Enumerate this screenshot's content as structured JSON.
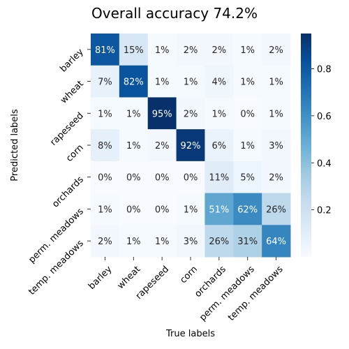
{
  "chart_data": {
    "type": "heatmap",
    "title": "Overall accuracy 74.2%",
    "xlabel": "True labels",
    "ylabel": "Predicted labels",
    "x_categories": [
      "barley",
      "wheat",
      "rapeseed",
      "corn",
      "orchards",
      "perm. meadows",
      "temp. meadows"
    ],
    "y_categories": [
      "barley",
      "wheat",
      "rapeseed",
      "corn",
      "orchards",
      "perm. meadows",
      "temp. meadows"
    ],
    "values": [
      [
        0.81,
        0.15,
        0.01,
        0.02,
        0.02,
        0.01,
        0.02
      ],
      [
        0.07,
        0.82,
        0.01,
        0.01,
        0.04,
        0.01,
        0.01
      ],
      [
        0.01,
        0.01,
        0.95,
        0.02,
        0.01,
        0.0,
        0.01
      ],
      [
        0.08,
        0.01,
        0.02,
        0.92,
        0.06,
        0.01,
        0.03
      ],
      [
        0.0,
        0.0,
        0.0,
        0.0,
        0.11,
        0.05,
        0.02
      ],
      [
        0.01,
        0.0,
        0.0,
        0.01,
        0.51,
        0.62,
        0.26
      ],
      [
        0.02,
        0.01,
        0.01,
        0.03,
        0.26,
        0.31,
        0.64
      ]
    ],
    "cell_labels": [
      [
        "81%",
        "15%",
        "1%",
        "2%",
        "2%",
        "1%",
        "2%"
      ],
      [
        "7%",
        "82%",
        "1%",
        "1%",
        "4%",
        "1%",
        "1%"
      ],
      [
        "1%",
        "1%",
        "95%",
        "2%",
        "1%",
        "0%",
        "1%"
      ],
      [
        "8%",
        "1%",
        "2%",
        "92%",
        "6%",
        "1%",
        "3%"
      ],
      [
        "0%",
        "0%",
        "0%",
        "0%",
        "11%",
        "5%",
        "2%"
      ],
      [
        "1%",
        "0%",
        "0%",
        "1%",
        "51%",
        "62%",
        "26%"
      ],
      [
        "2%",
        "1%",
        "1%",
        "3%",
        "26%",
        "31%",
        "64%"
      ]
    ],
    "colormap": "Blues",
    "color_range": [
      0.0,
      0.95
    ],
    "colorbar_ticks": [
      0.2,
      0.4,
      0.6,
      0.8
    ],
    "colorbar_tick_labels": [
      "0.2",
      "0.4",
      "0.6",
      "0.8"
    ],
    "grid": false
  }
}
